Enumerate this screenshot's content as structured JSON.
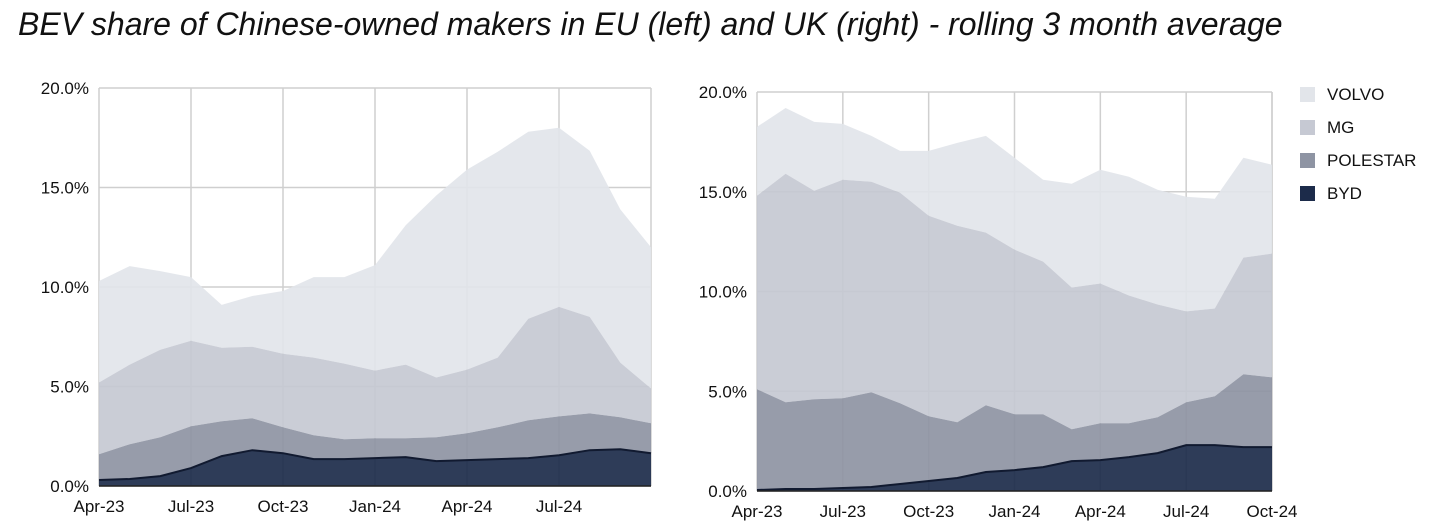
{
  "title": "BEV share of Chinese-owned makers in EU (left) and UK (right) - rolling 3 month average",
  "legend": [
    {
      "key": "VOLVO",
      "label": "VOLVO",
      "color": "#e2e5ea"
    },
    {
      "key": "MG",
      "label": "MG",
      "color": "#c6c9d3"
    },
    {
      "key": "POLESTAR",
      "label": "POLESTAR",
      "color": "#8e94a3"
    },
    {
      "key": "BYD",
      "label": "BYD",
      "color": "#1c2b4a"
    }
  ],
  "chart_data": [
    {
      "type": "area",
      "stacked": true,
      "region": "EU",
      "x": [
        "Apr-23",
        "May-23",
        "Jun-23",
        "Jul-23",
        "Aug-23",
        "Sep-23",
        "Oct-23",
        "Nov-23",
        "Dec-23",
        "Jan-24",
        "Feb-24",
        "Mar-24",
        "Apr-24",
        "May-24",
        "Jun-24",
        "Jul-24",
        "Aug-24",
        "Sep-24",
        "Oct-24"
      ],
      "x_tick_labels": [
        "Apr-23",
        "Jul-23",
        "Oct-23",
        "Jan-24",
        "Apr-24",
        "Jul-24"
      ],
      "y_tick_labels": [
        "0.0%",
        "5.0%",
        "10.0%",
        "15.0%",
        "20.0%"
      ],
      "ylim": [
        0,
        20
      ],
      "grid": true,
      "series": [
        {
          "name": "BYD",
          "values": [
            0.3,
            0.35,
            0.5,
            0.9,
            1.5,
            1.8,
            1.65,
            1.35,
            1.35,
            1.4,
            1.45,
            1.25,
            1.3,
            1.35,
            1.4,
            1.55,
            1.8,
            1.85,
            1.65
          ]
        },
        {
          "name": "POLESTAR",
          "values": [
            1.3,
            1.75,
            1.95,
            2.1,
            1.75,
            1.6,
            1.3,
            1.2,
            1.0,
            1.0,
            0.95,
            1.2,
            1.35,
            1.6,
            1.9,
            1.95,
            1.85,
            1.6,
            1.5
          ]
        },
        {
          "name": "MG",
          "values": [
            3.6,
            4.0,
            4.4,
            4.3,
            3.7,
            3.6,
            3.7,
            3.9,
            3.8,
            3.4,
            3.7,
            3.0,
            3.2,
            3.5,
            5.1,
            5.5,
            4.85,
            2.75,
            1.75
          ]
        },
        {
          "name": "VOLVO",
          "values": [
            5.1,
            4.95,
            3.95,
            3.2,
            2.15,
            2.55,
            3.15,
            4.05,
            4.35,
            5.3,
            7.0,
            9.15,
            10.05,
            10.35,
            9.4,
            9.0,
            8.35,
            7.7,
            7.1
          ]
        }
      ]
    },
    {
      "type": "area",
      "stacked": true,
      "region": "UK",
      "x": [
        "Apr-23",
        "May-23",
        "Jun-23",
        "Jul-23",
        "Aug-23",
        "Sep-23",
        "Oct-23",
        "Nov-23",
        "Dec-23",
        "Jan-24",
        "Feb-24",
        "Mar-24",
        "Apr-24",
        "May-24",
        "Jun-24",
        "Jul-24",
        "Aug-24",
        "Sep-24",
        "Oct-24"
      ],
      "x_tick_labels": [
        "Apr-23",
        "Jul-23",
        "Oct-23",
        "Jan-24",
        "Apr-24",
        "Jul-24",
        "Oct-24"
      ],
      "y_tick_labels": [
        "0.0%",
        "5.0%",
        "10.0%",
        "15.0%",
        "20.0%"
      ],
      "ylim": [
        0,
        20
      ],
      "grid": true,
      "series": [
        {
          "name": "BYD",
          "values": [
            0.05,
            0.1,
            0.1,
            0.15,
            0.2,
            0.35,
            0.5,
            0.65,
            0.95,
            1.05,
            1.2,
            1.5,
            1.55,
            1.7,
            1.9,
            2.3,
            2.3,
            2.2,
            2.2
          ]
        },
        {
          "name": "POLESTAR",
          "values": [
            5.05,
            4.35,
            4.5,
            4.5,
            4.75,
            4.05,
            3.25,
            2.8,
            3.35,
            2.8,
            2.65,
            1.6,
            1.85,
            1.7,
            1.8,
            2.15,
            2.45,
            3.65,
            3.5
          ]
        },
        {
          "name": "MG",
          "values": [
            9.7,
            11.45,
            10.45,
            10.95,
            10.55,
            10.55,
            10.05,
            9.85,
            8.65,
            8.25,
            7.65,
            7.1,
            7.0,
            6.4,
            5.65,
            4.55,
            4.4,
            5.85,
            6.2
          ]
        },
        {
          "name": "VOLVO",
          "values": [
            3.45,
            3.3,
            3.45,
            2.8,
            2.3,
            2.1,
            3.25,
            4.15,
            4.85,
            4.6,
            4.1,
            5.2,
            5.7,
            5.95,
            5.75,
            5.75,
            5.5,
            5.0,
            4.45
          ]
        }
      ]
    }
  ]
}
